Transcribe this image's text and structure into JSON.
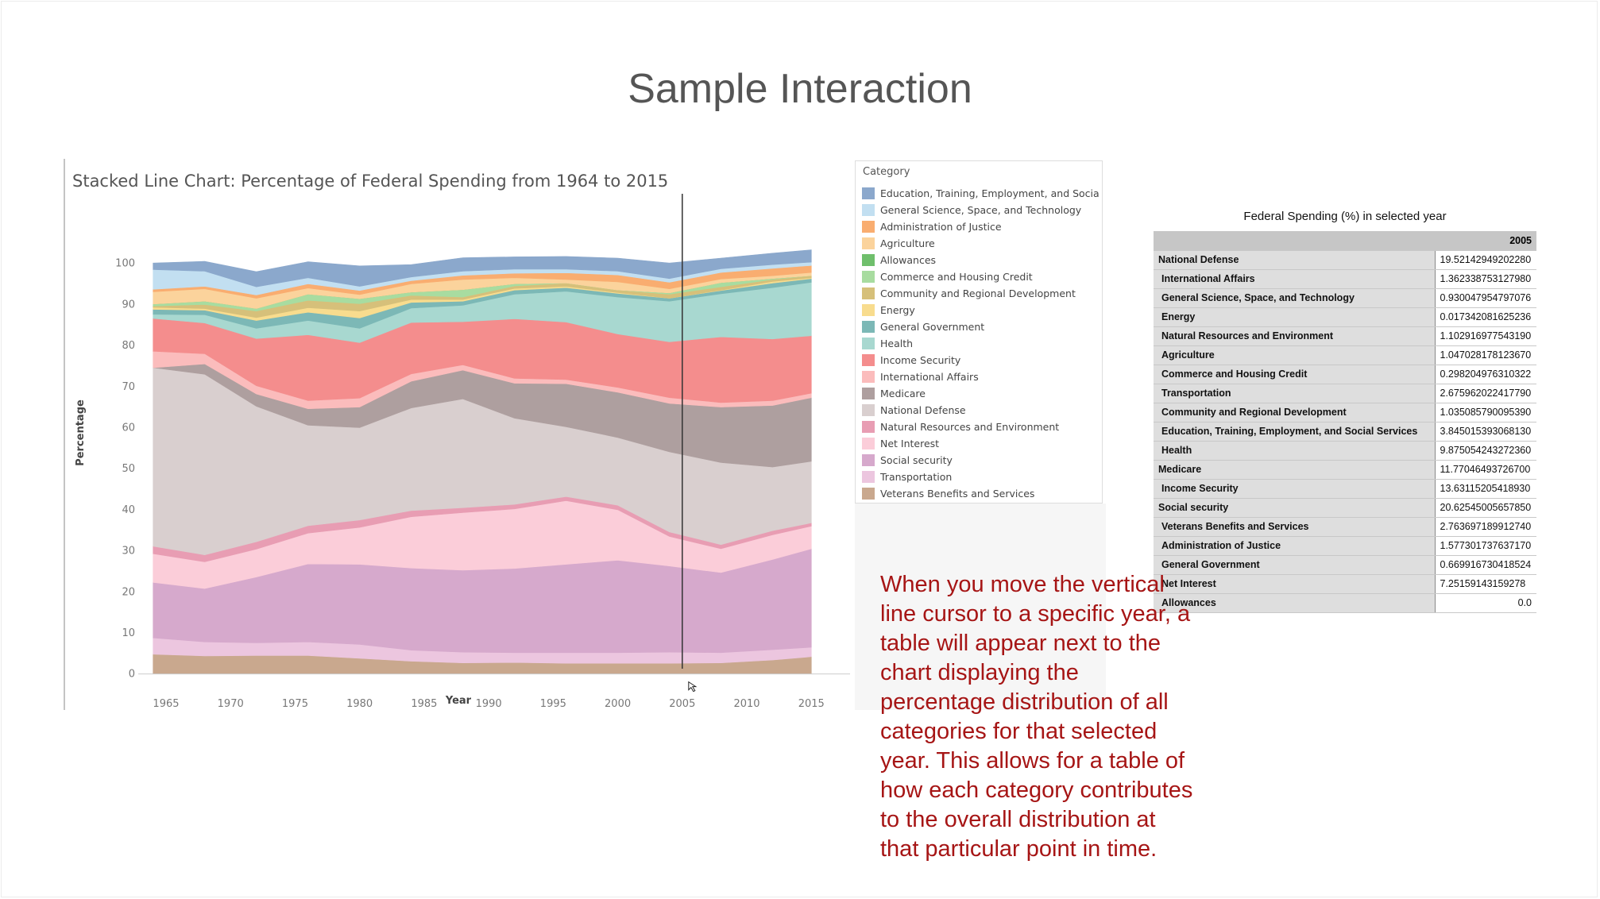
{
  "slide": {
    "title": "Sample Interaction"
  },
  "chart_data": {
    "type": "area",
    "title": "Stacked Line Chart: Percentage of Federal Spending from 1964 to 2015",
    "xlabel": "Year",
    "ylabel": "Percentage",
    "xlim": [
      1961,
      2018
    ],
    "ylim": [
      -8,
      110
    ],
    "xticks": [
      1965,
      1970,
      1975,
      1980,
      1985,
      1990,
      1995,
      2000,
      2005,
      2010,
      2015
    ],
    "yticks": [
      0,
      10,
      20,
      30,
      40,
      50,
      60,
      70,
      80,
      90,
      100
    ],
    "grid": false,
    "cursor_year": 2005,
    "x": [
      1964,
      1968,
      1972,
      1976,
      1980,
      1984,
      1988,
      1992,
      1996,
      2000,
      2004,
      2008,
      2012,
      2015
    ],
    "series": [
      {
        "name": "Veterans Benefits and Services",
        "color": "#c9a88e",
        "values": [
          4.8,
          4.4,
          4.5,
          4.5,
          3.8,
          3.1,
          2.7,
          2.8,
          2.6,
          2.6,
          2.6,
          2.7,
          3.4,
          4.2
        ]
      },
      {
        "name": "Transportation",
        "color": "#ecc6df",
        "values": [
          4.0,
          3.4,
          3.1,
          3.3,
          3.4,
          2.7,
          2.6,
          2.4,
          2.6,
          2.6,
          2.7,
          2.5,
          2.5,
          2.3
        ]
      },
      {
        "name": "Social security",
        "color": "#d6a9cc",
        "values": [
          13.5,
          13.0,
          16.0,
          19.0,
          19.5,
          20.0,
          20.0,
          20.5,
          21.5,
          22.5,
          21.0,
          19.5,
          22.0,
          24.0
        ]
      },
      {
        "name": "Net Interest",
        "color": "#fbcdd9",
        "values": [
          7.0,
          6.5,
          6.8,
          7.5,
          9.0,
          12.5,
          14.0,
          14.5,
          15.5,
          12.3,
          7.2,
          5.8,
          6.0,
          5.5
        ]
      },
      {
        "name": "Natural Resources and Environment",
        "color": "#e89db3",
        "values": [
          1.8,
          1.7,
          1.8,
          1.8,
          1.8,
          1.5,
          1.2,
          1.1,
          1.0,
          1.1,
          1.1,
          1.0,
          1.0,
          0.8
        ]
      },
      {
        "name": "National Defense",
        "color": "#d9cfcf",
        "values": [
          43.5,
          44.0,
          33.0,
          24.5,
          22.5,
          25.0,
          26.5,
          21.0,
          17.0,
          16.5,
          19.5,
          20.0,
          15.5,
          15.0
        ]
      },
      {
        "name": "Medicare",
        "color": "#ae9f9f",
        "values": [
          0.0,
          2.5,
          3.0,
          4.0,
          5.0,
          6.5,
          7.0,
          8.5,
          10.5,
          11.0,
          11.8,
          13.5,
          15.0,
          15.5
        ]
      },
      {
        "name": "International Affairs",
        "color": "#fbbcbc",
        "values": [
          4.0,
          2.5,
          2.0,
          2.0,
          2.2,
          1.8,
          1.3,
          1.2,
          1.0,
          1.2,
          1.4,
          1.1,
          1.2,
          1.1
        ]
      },
      {
        "name": "Income Security",
        "color": "#f48d8d",
        "values": [
          8.0,
          7.5,
          11.5,
          16.0,
          13.5,
          12.5,
          10.5,
          14.5,
          14.0,
          13.0,
          13.6,
          16.0,
          15.0,
          14.0
        ]
      },
      {
        "name": "Health",
        "color": "#a8d8d0",
        "values": [
          1.0,
          2.0,
          2.5,
          3.5,
          3.5,
          3.5,
          4.0,
          6.0,
          7.5,
          9.0,
          9.9,
          10.5,
          12.5,
          13.0
        ]
      },
      {
        "name": "General Government",
        "color": "#7cb8b6",
        "values": [
          1.2,
          1.1,
          1.9,
          2.0,
          2.5,
          1.4,
          1.0,
          1.0,
          0.9,
          0.9,
          0.7,
          0.8,
          1.1,
          0.9
        ]
      },
      {
        "name": "Energy",
        "color": "#f8dc8e",
        "values": [
          0.5,
          0.4,
          0.7,
          1.1,
          1.7,
          0.7,
          0.4,
          0.4,
          0.3,
          0.2,
          0.0,
          0.1,
          0.4,
          0.2
        ]
      },
      {
        "name": "Community and Regional Development",
        "color": "#d6c07a",
        "values": [
          0.3,
          1.0,
          1.6,
          1.8,
          1.8,
          1.0,
          0.6,
          0.6,
          0.8,
          0.6,
          1.0,
          0.8,
          0.5,
          0.5
        ]
      },
      {
        "name": "Commerce and Housing Credit",
        "color": "#a8dca0",
        "values": [
          0.5,
          0.8,
          0.6,
          1.5,
          1.2,
          0.8,
          1.8,
          0.5,
          0.0,
          0.0,
          0.3,
          1.0,
          0.2,
          0.0
        ]
      },
      {
        "name": "Allowances",
        "color": "#6fbf6c",
        "values": [
          0.0,
          0.0,
          0.0,
          0.0,
          0.0,
          0.0,
          0.0,
          0.0,
          0.0,
          0.0,
          0.0,
          0.0,
          0.0,
          0.0
        ]
      },
      {
        "name": "Agriculture",
        "color": "#fbd39c",
        "values": [
          3.0,
          3.0,
          2.5,
          1.5,
          1.0,
          2.0,
          2.5,
          1.5,
          0.9,
          2.0,
          1.0,
          0.9,
          0.7,
          0.8
        ]
      },
      {
        "name": "Administration of Justice",
        "color": "#f9ad70",
        "values": [
          0.6,
          0.6,
          0.8,
          1.0,
          1.0,
          0.8,
          1.0,
          1.1,
          1.6,
          1.7,
          1.6,
          1.6,
          1.8,
          1.7
        ]
      },
      {
        "name": "General Science, Space, and Technology",
        "color": "#c2dff1",
        "values": [
          4.8,
          3.7,
          2.0,
          1.5,
          1.0,
          0.9,
          1.0,
          1.0,
          0.9,
          0.9,
          0.9,
          0.9,
          0.9,
          0.8
        ]
      },
      {
        "name": "Education, Training, Employment, and Social Services",
        "color": "#8ba8cc",
        "values": [
          1.6,
          2.4,
          3.7,
          3.9,
          5.0,
          3.0,
          3.3,
          3.0,
          3.1,
          3.2,
          3.8,
          2.6,
          2.8,
          3.0
        ]
      }
    ]
  },
  "legend": {
    "title": "Category",
    "items": [
      {
        "label": "Education, Training, Employment, and Social ..",
        "color": "#8ba8cc"
      },
      {
        "label": "General Science, Space, and Technology",
        "color": "#c2dff1"
      },
      {
        "label": "Administration of Justice",
        "color": "#f9ad70"
      },
      {
        "label": "Agriculture",
        "color": "#fbd39c"
      },
      {
        "label": "Allowances",
        "color": "#6fbf6c"
      },
      {
        "label": "Commerce and Housing Credit",
        "color": "#a8dca0"
      },
      {
        "label": "Community and Regional Development",
        "color": "#d6c07a"
      },
      {
        "label": "Energy",
        "color": "#f8dc8e"
      },
      {
        "label": "General Government",
        "color": "#7cb8b6"
      },
      {
        "label": "Health",
        "color": "#a8d8d0"
      },
      {
        "label": "Income Security",
        "color": "#f48d8d"
      },
      {
        "label": "International Affairs",
        "color": "#fbbcbc"
      },
      {
        "label": "Medicare",
        "color": "#ae9f9f"
      },
      {
        "label": "National Defense",
        "color": "#d9cfcf"
      },
      {
        "label": "Natural Resources and Environment",
        "color": "#e89db3"
      },
      {
        "label": "Net Interest",
        "color": "#fbcdd9"
      },
      {
        "label": "Social security",
        "color": "#d6a9cc"
      },
      {
        "label": "Transportation",
        "color": "#ecc6df"
      },
      {
        "label": "Veterans Benefits and Services",
        "color": "#c9a88e"
      }
    ]
  },
  "table": {
    "caption": "Federal Spending (%)  in selected year",
    "year_header": "2005",
    "rows": [
      {
        "category": "National Defense",
        "value": "19.52142949202280"
      },
      {
        "category": "International Affairs",
        "value": "1.362338753127980"
      },
      {
        "category": "General Science, Space, and Technology",
        "value": "0.930047954797076"
      },
      {
        "category": "Energy",
        "value": "0.017342081625236"
      },
      {
        "category": "Natural Resources and Environment",
        "value": "1.102916977543190"
      },
      {
        "category": "Agriculture",
        "value": "1.047028178123670"
      },
      {
        "category": "Commerce and Housing Credit",
        "value": "0.298204976310322"
      },
      {
        "category": "Transportation",
        "value": "2.675962022417790"
      },
      {
        "category": "Community and Regional Development",
        "value": "1.035085790095390"
      },
      {
        "category": "Education, Training, Employment, and Social Services",
        "value": "3.845015393068130"
      },
      {
        "category": "Health",
        "value": "9.875054243272360"
      },
      {
        "category": "Medicare",
        "value": "11.77046493726700"
      },
      {
        "category": "Income Security",
        "value": "13.63115205418930"
      },
      {
        "category": "Social security",
        "value": "20.62545005657850"
      },
      {
        "category": "Veterans Benefits and Services",
        "value": "2.763697189912740"
      },
      {
        "category": "Administration of Justice",
        "value": "1.577301737637170"
      },
      {
        "category": "General Government",
        "value": "0.669916730418524"
      },
      {
        "category": "Net Interest",
        "value": "7.25159143159278"
      },
      {
        "category": "Allowances",
        "value": "0.0"
      }
    ]
  },
  "explanation": "When you move the vertical line cursor to a specific year, a table will appear next to the chart displaying the percentage distribution of all categories for that selected year. This allows for a table of how each category contributes to the overall distribution at that particular point in time."
}
